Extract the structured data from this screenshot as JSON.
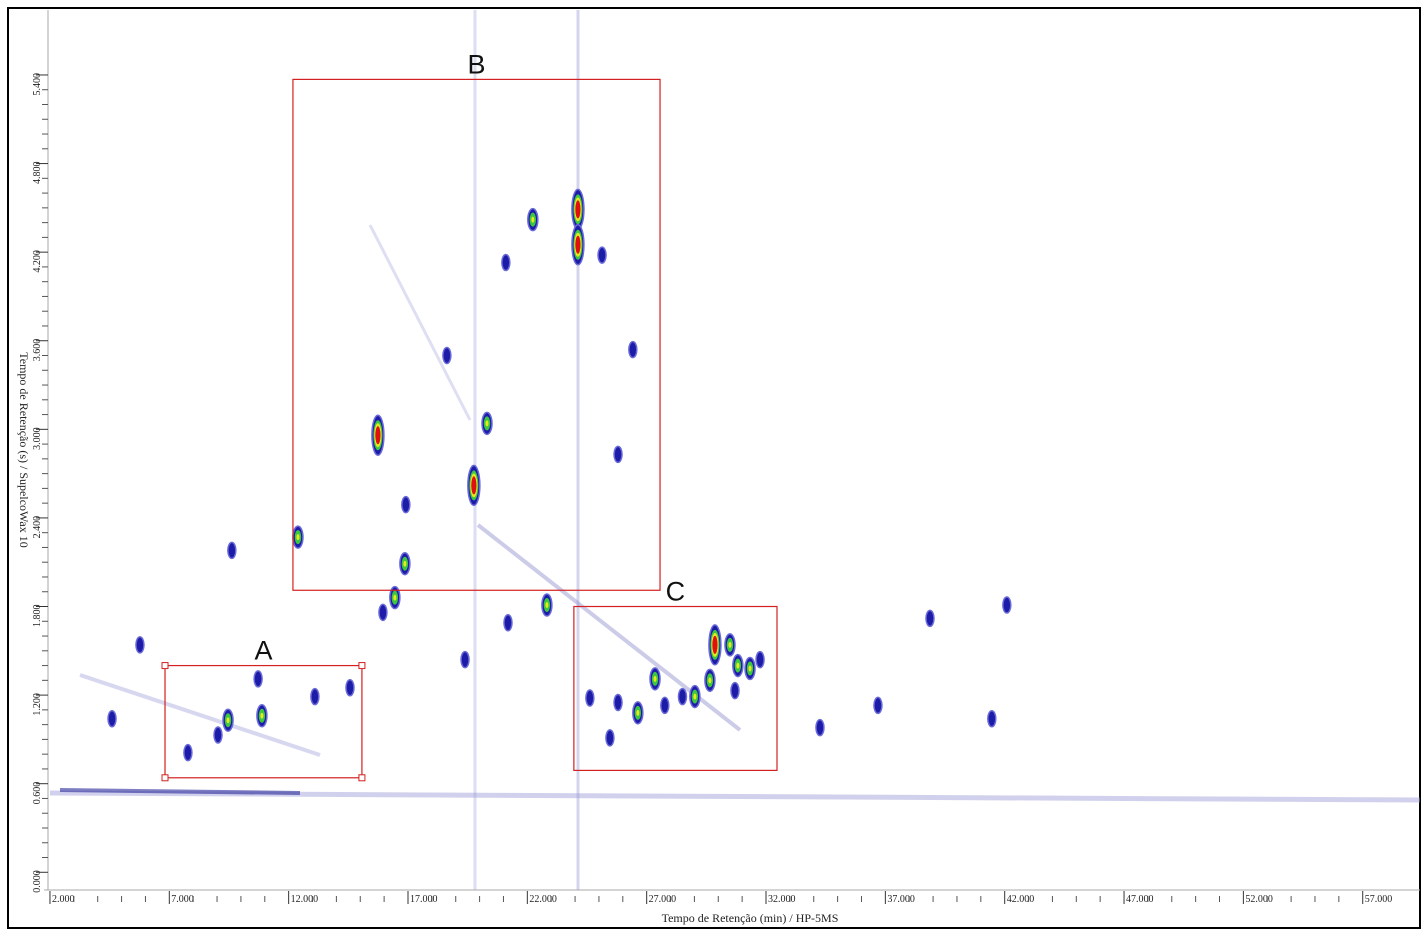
{
  "chart_data": {
    "type": "scatter",
    "x_label": "Tempo de Retenção (min) / HP-5MS",
    "y_label": "Tempo de Retenção (s) / SupelcoWax 10",
    "xlim": [
      1.75,
      59.4
    ],
    "ylim": [
      -0.12,
      5.84
    ],
    "xticks": [
      {
        "value": 2,
        "label": "2.000"
      },
      {
        "value": 7,
        "label": "7.000"
      },
      {
        "value": 12,
        "label": "12.000"
      },
      {
        "value": 17,
        "label": "17.000"
      },
      {
        "value": 22,
        "label": "22.000"
      },
      {
        "value": 27,
        "label": "27.000"
      },
      {
        "value": 32,
        "label": "32.000"
      },
      {
        "value": 37,
        "label": "37.000"
      },
      {
        "value": 42,
        "label": "42.000"
      },
      {
        "value": 47,
        "label": "47.000"
      },
      {
        "value": 52,
        "label": "52.000"
      },
      {
        "value": 57,
        "label": "57.000"
      }
    ],
    "yticks": [
      {
        "value": 0,
        "label": "0.000"
      },
      {
        "value": 0.6,
        "label": "0.600"
      },
      {
        "value": 1.2,
        "label": "1.200"
      },
      {
        "value": 1.8,
        "label": "1.800"
      },
      {
        "value": 2.4,
        "label": "2.400"
      },
      {
        "value": 3.0,
        "label": "3.000"
      },
      {
        "value": 3.6,
        "label": "3.600"
      },
      {
        "value": 4.2,
        "label": "4.200"
      },
      {
        "value": 4.8,
        "label": "4.800"
      },
      {
        "value": 5.4,
        "label": "5.400"
      }
    ],
    "series": [
      {
        "color": "#1c1ca8",
        "x": [
          15.95,
          16.91,
          18.63,
          25.13,
          26.42,
          25.8,
          21.19,
          9.62,
          21.1,
          10.72,
          9.04,
          7.78,
          14.57,
          13.1,
          4.6,
          25.8,
          28.5,
          27.76,
          24.62,
          31.75,
          30.7,
          25.46,
          38.87,
          42.09,
          36.69,
          41.46,
          34.26,
          19.39,
          5.77
        ],
        "values": [
          1.76,
          2.49,
          3.5,
          4.18,
          3.54,
          2.83,
          1.69,
          2.18,
          4.13,
          1.31,
          0.93,
          0.81,
          1.25,
          1.19,
          1.04,
          1.15,
          1.19,
          1.13,
          1.18,
          1.44,
          1.23,
          0.91,
          1.72,
          1.81,
          1.13,
          1.04,
          0.98,
          1.44,
          1.54
        ]
      },
      {
        "color": "#3cc83c",
        "x": [
          12.39,
          16.87,
          16.45,
          20.31,
          22.23,
          22.82,
          9.46,
          10.88,
          30.49,
          30.82,
          31.33,
          27.35,
          29.02,
          29.65,
          26.63
        ],
        "values": [
          2.27,
          2.09,
          1.86,
          3.04,
          4.42,
          1.81,
          1.03,
          1.06,
          1.54,
          1.4,
          1.38,
          1.31,
          1.19,
          1.3,
          1.08
        ]
      },
      {
        "color": "#e01010",
        "x": [
          15.74,
          19.76,
          24.12,
          24.12,
          29.86
        ],
        "values": [
          2.96,
          2.62,
          4.49,
          4.25,
          1.54
        ]
      }
    ],
    "annotations": [
      {
        "text": "A",
        "x": [
          6.82,
          15.07
        ],
        "y": [
          0.64,
          1.4
        ]
      },
      {
        "text": "B",
        "x": [
          12.18,
          27.56
        ],
        "y": [
          1.91,
          5.37
        ]
      },
      {
        "text": "C",
        "x": [
          23.95,
          32.46
        ],
        "y": [
          0.69,
          1.8
        ]
      }
    ],
    "annotation_color": "#d42020"
  }
}
